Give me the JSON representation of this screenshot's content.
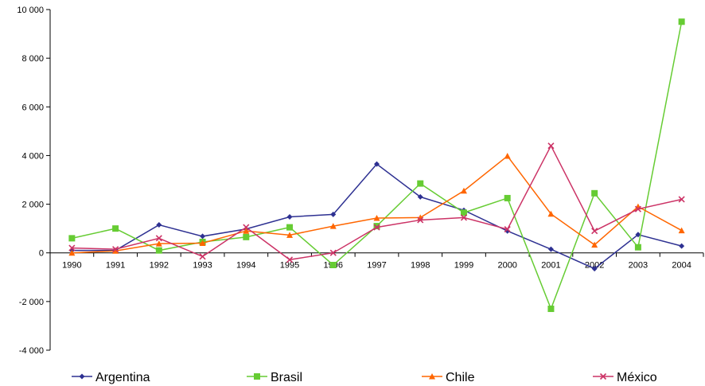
{
  "chart_data": {
    "type": "line",
    "title": "",
    "xlabel": "",
    "ylabel": "",
    "categories": [
      "1990",
      "1991",
      "1992",
      "1993",
      "1994",
      "1995",
      "1996",
      "1997",
      "1998",
      "1999",
      "2000",
      "2001",
      "2002",
      "2003",
      "2004"
    ],
    "ylim": [
      -4000,
      10000
    ],
    "yticks": [
      -4000,
      -2000,
      0,
      2000,
      4000,
      6000,
      8000,
      10000
    ],
    "ytick_labels": [
      "-4 000",
      "-2 000",
      "0",
      "2 000",
      "4 000",
      "6 000",
      "8 000",
      "10 000"
    ],
    "grid": false,
    "legend_position": "bottom",
    "series": [
      {
        "name": "Argentina",
        "color": "#2E3192",
        "marker": "diamond",
        "values": [
          100,
          100,
          1150,
          680,
          980,
          1480,
          1580,
          3650,
          2300,
          1750,
          900,
          150,
          -650,
          750,
          280
        ]
      },
      {
        "name": "Brasil",
        "color": "#66CC33",
        "marker": "square",
        "values": [
          600,
          1000,
          100,
          450,
          650,
          1050,
          -500,
          1100,
          2850,
          1650,
          2250,
          -2300,
          2450,
          230,
          9500
        ]
      },
      {
        "name": "Chile",
        "color": "#FF6600",
        "marker": "triangle",
        "values": [
          0,
          80,
          380,
          400,
          900,
          730,
          1100,
          1430,
          1450,
          2550,
          3980,
          1600,
          330,
          1900,
          920
        ]
      },
      {
        "name": "México",
        "color": "#CC3366",
        "marker": "x",
        "values": [
          200,
          150,
          600,
          -150,
          1050,
          -280,
          0,
          1050,
          1350,
          1450,
          970,
          4400,
          900,
          1800,
          2200
        ]
      }
    ]
  }
}
